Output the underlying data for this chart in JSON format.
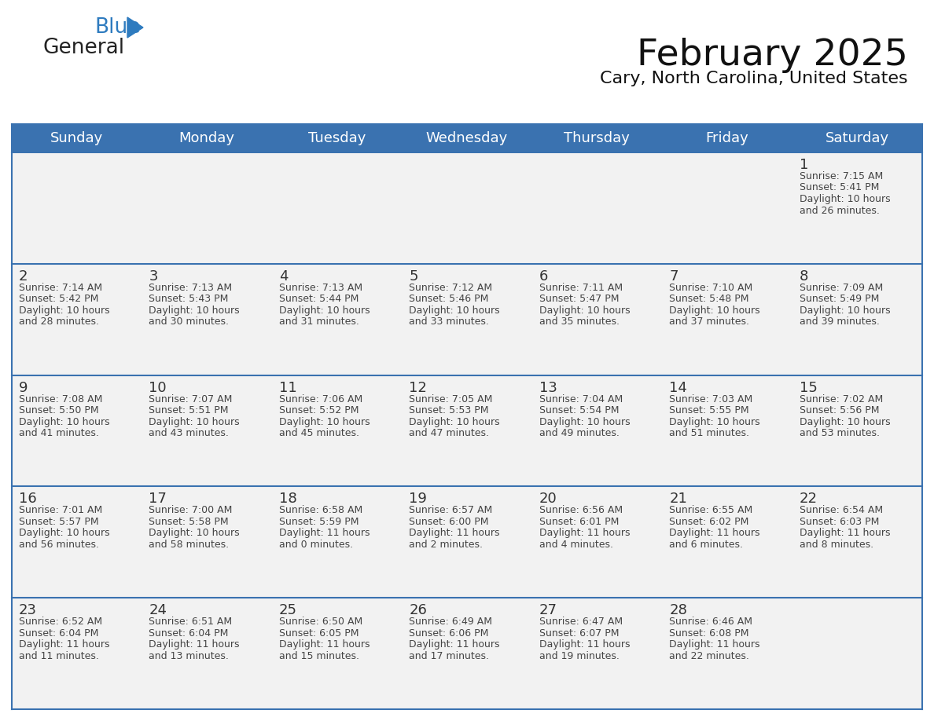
{
  "title": "February 2025",
  "subtitle": "Cary, North Carolina, United States",
  "header_bg": "#3a72b0",
  "header_text_color": "#ffffff",
  "cell_bg": "#f2f2f2",
  "day_number_color": "#333333",
  "text_color": "#444444",
  "line_color": "#3a72b0",
  "days_of_week": [
    "Sunday",
    "Monday",
    "Tuesday",
    "Wednesday",
    "Thursday",
    "Friday",
    "Saturday"
  ],
  "logo_color1": "#222222",
  "logo_color2": "#2e7bbf",
  "logo_triangle_color": "#2e7bbf",
  "weeks": [
    [
      {
        "day": "",
        "info": ""
      },
      {
        "day": "",
        "info": ""
      },
      {
        "day": "",
        "info": ""
      },
      {
        "day": "",
        "info": ""
      },
      {
        "day": "",
        "info": ""
      },
      {
        "day": "",
        "info": ""
      },
      {
        "day": "1",
        "info": "Sunrise: 7:15 AM\nSunset: 5:41 PM\nDaylight: 10 hours\nand 26 minutes."
      }
    ],
    [
      {
        "day": "2",
        "info": "Sunrise: 7:14 AM\nSunset: 5:42 PM\nDaylight: 10 hours\nand 28 minutes."
      },
      {
        "day": "3",
        "info": "Sunrise: 7:13 AM\nSunset: 5:43 PM\nDaylight: 10 hours\nand 30 minutes."
      },
      {
        "day": "4",
        "info": "Sunrise: 7:13 AM\nSunset: 5:44 PM\nDaylight: 10 hours\nand 31 minutes."
      },
      {
        "day": "5",
        "info": "Sunrise: 7:12 AM\nSunset: 5:46 PM\nDaylight: 10 hours\nand 33 minutes."
      },
      {
        "day": "6",
        "info": "Sunrise: 7:11 AM\nSunset: 5:47 PM\nDaylight: 10 hours\nand 35 minutes."
      },
      {
        "day": "7",
        "info": "Sunrise: 7:10 AM\nSunset: 5:48 PM\nDaylight: 10 hours\nand 37 minutes."
      },
      {
        "day": "8",
        "info": "Sunrise: 7:09 AM\nSunset: 5:49 PM\nDaylight: 10 hours\nand 39 minutes."
      }
    ],
    [
      {
        "day": "9",
        "info": "Sunrise: 7:08 AM\nSunset: 5:50 PM\nDaylight: 10 hours\nand 41 minutes."
      },
      {
        "day": "10",
        "info": "Sunrise: 7:07 AM\nSunset: 5:51 PM\nDaylight: 10 hours\nand 43 minutes."
      },
      {
        "day": "11",
        "info": "Sunrise: 7:06 AM\nSunset: 5:52 PM\nDaylight: 10 hours\nand 45 minutes."
      },
      {
        "day": "12",
        "info": "Sunrise: 7:05 AM\nSunset: 5:53 PM\nDaylight: 10 hours\nand 47 minutes."
      },
      {
        "day": "13",
        "info": "Sunrise: 7:04 AM\nSunset: 5:54 PM\nDaylight: 10 hours\nand 49 minutes."
      },
      {
        "day": "14",
        "info": "Sunrise: 7:03 AM\nSunset: 5:55 PM\nDaylight: 10 hours\nand 51 minutes."
      },
      {
        "day": "15",
        "info": "Sunrise: 7:02 AM\nSunset: 5:56 PM\nDaylight: 10 hours\nand 53 minutes."
      }
    ],
    [
      {
        "day": "16",
        "info": "Sunrise: 7:01 AM\nSunset: 5:57 PM\nDaylight: 10 hours\nand 56 minutes."
      },
      {
        "day": "17",
        "info": "Sunrise: 7:00 AM\nSunset: 5:58 PM\nDaylight: 10 hours\nand 58 minutes."
      },
      {
        "day": "18",
        "info": "Sunrise: 6:58 AM\nSunset: 5:59 PM\nDaylight: 11 hours\nand 0 minutes."
      },
      {
        "day": "19",
        "info": "Sunrise: 6:57 AM\nSunset: 6:00 PM\nDaylight: 11 hours\nand 2 minutes."
      },
      {
        "day": "20",
        "info": "Sunrise: 6:56 AM\nSunset: 6:01 PM\nDaylight: 11 hours\nand 4 minutes."
      },
      {
        "day": "21",
        "info": "Sunrise: 6:55 AM\nSunset: 6:02 PM\nDaylight: 11 hours\nand 6 minutes."
      },
      {
        "day": "22",
        "info": "Sunrise: 6:54 AM\nSunset: 6:03 PM\nDaylight: 11 hours\nand 8 minutes."
      }
    ],
    [
      {
        "day": "23",
        "info": "Sunrise: 6:52 AM\nSunset: 6:04 PM\nDaylight: 11 hours\nand 11 minutes."
      },
      {
        "day": "24",
        "info": "Sunrise: 6:51 AM\nSunset: 6:04 PM\nDaylight: 11 hours\nand 13 minutes."
      },
      {
        "day": "25",
        "info": "Sunrise: 6:50 AM\nSunset: 6:05 PM\nDaylight: 11 hours\nand 15 minutes."
      },
      {
        "day": "26",
        "info": "Sunrise: 6:49 AM\nSunset: 6:06 PM\nDaylight: 11 hours\nand 17 minutes."
      },
      {
        "day": "27",
        "info": "Sunrise: 6:47 AM\nSunset: 6:07 PM\nDaylight: 11 hours\nand 19 minutes."
      },
      {
        "day": "28",
        "info": "Sunrise: 6:46 AM\nSunset: 6:08 PM\nDaylight: 11 hours\nand 22 minutes."
      },
      {
        "day": "",
        "info": ""
      }
    ]
  ]
}
